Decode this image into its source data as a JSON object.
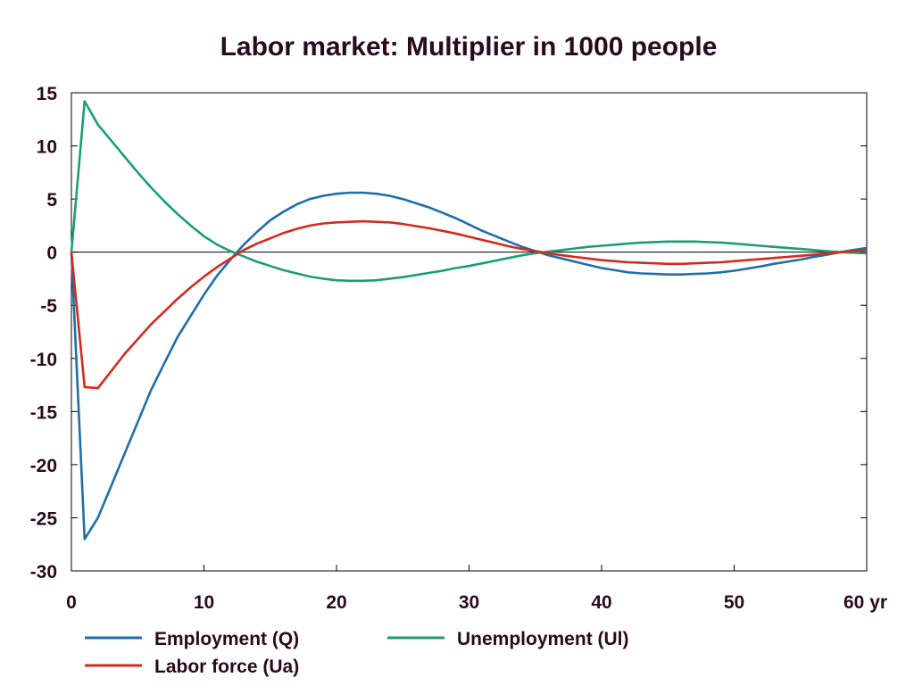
{
  "colors": {
    "employment": "#1f6fa8",
    "unemployment": "#1a9e78",
    "labor_force": "#d42a1c",
    "text": "#2a0a1e",
    "axis": "#000000"
  },
  "chart_data": {
    "type": "line",
    "title": "Labor market: Multiplier in 1000 people",
    "xlabel": "",
    "ylabel": "",
    "xlim": [
      0,
      60
    ],
    "ylim": [
      -30,
      15
    ],
    "x_ticks": [
      0,
      10,
      20,
      30,
      40,
      50,
      60
    ],
    "x_tick_labels": [
      "0",
      "10",
      "20",
      "30",
      "40",
      "50",
      "60 yr"
    ],
    "y_ticks": [
      15,
      10,
      5,
      0,
      -5,
      -10,
      -15,
      -20,
      -25,
      -30
    ],
    "y_tick_labels": [
      "15",
      "10",
      "5",
      "0",
      "-5",
      "-10",
      "-15",
      "-20",
      "-25",
      "-30"
    ],
    "zero_line": true,
    "legend_position": "bottom",
    "series": [
      {
        "name": "Employment (Q)",
        "color_key": "employment",
        "x": [
          0,
          1,
          2,
          3,
          4,
          5,
          6,
          7,
          8,
          9,
          10,
          11,
          12,
          13,
          14,
          15,
          16,
          17,
          18,
          19,
          20,
          21,
          22,
          23,
          24,
          25,
          26,
          27,
          28,
          29,
          30,
          31,
          32,
          33,
          34,
          35,
          36,
          37,
          38,
          39,
          40,
          41,
          42,
          43,
          44,
          45,
          46,
          47,
          48,
          49,
          50,
          51,
          52,
          53,
          54,
          55,
          56,
          57,
          58,
          59,
          60
        ],
        "y": [
          0,
          -27,
          -25,
          -22,
          -19,
          -16,
          -13,
          -10.5,
          -8,
          -6,
          -4,
          -2.2,
          -0.7,
          0.7,
          1.9,
          3,
          3.8,
          4.5,
          5,
          5.3,
          5.5,
          5.6,
          5.6,
          5.5,
          5.3,
          5,
          4.6,
          4.2,
          3.7,
          3.2,
          2.6,
          2,
          1.5,
          1,
          0.5,
          0.1,
          -0.3,
          -0.6,
          -0.9,
          -1.2,
          -1.5,
          -1.7,
          -1.9,
          -2,
          -2.05,
          -2.1,
          -2.1,
          -2.05,
          -2,
          -1.9,
          -1.75,
          -1.55,
          -1.35,
          -1.1,
          -0.9,
          -0.7,
          -0.45,
          -0.25,
          0,
          0.2,
          0.4
        ]
      },
      {
        "name": "Unemployment (Ul)",
        "color_key": "unemployment",
        "x": [
          0,
          1,
          2,
          3,
          4,
          5,
          6,
          7,
          8,
          9,
          10,
          11,
          12,
          13,
          14,
          15,
          16,
          17,
          18,
          19,
          20,
          21,
          22,
          23,
          24,
          25,
          26,
          27,
          28,
          29,
          30,
          31,
          32,
          33,
          34,
          35,
          36,
          37,
          38,
          39,
          40,
          41,
          42,
          43,
          44,
          45,
          46,
          47,
          48,
          49,
          50,
          51,
          52,
          53,
          54,
          55,
          56,
          57,
          58,
          59,
          60
        ],
        "y": [
          0,
          14.2,
          12,
          10.5,
          9,
          7.5,
          6.1,
          4.8,
          3.6,
          2.5,
          1.5,
          0.7,
          0.1,
          -0.4,
          -0.9,
          -1.3,
          -1.7,
          -2,
          -2.3,
          -2.5,
          -2.65,
          -2.7,
          -2.7,
          -2.65,
          -2.5,
          -2.35,
          -2.15,
          -1.95,
          -1.75,
          -1.5,
          -1.3,
          -1.05,
          -0.8,
          -0.55,
          -0.3,
          -0.1,
          0.05,
          0.2,
          0.35,
          0.5,
          0.6,
          0.7,
          0.8,
          0.9,
          0.95,
          1,
          1,
          1,
          0.95,
          0.9,
          0.8,
          0.7,
          0.6,
          0.5,
          0.4,
          0.3,
          0.2,
          0.1,
          0,
          -0.05,
          -0.1
        ]
      },
      {
        "name": "Labor force (Ua)",
        "color_key": "labor_force",
        "x": [
          0,
          1,
          2,
          3,
          4,
          5,
          6,
          7,
          8,
          9,
          10,
          11,
          12,
          13,
          14,
          15,
          16,
          17,
          18,
          19,
          20,
          21,
          22,
          23,
          24,
          25,
          26,
          27,
          28,
          29,
          30,
          31,
          32,
          33,
          34,
          35,
          36,
          37,
          38,
          39,
          40,
          41,
          42,
          43,
          44,
          45,
          46,
          47,
          48,
          49,
          50,
          51,
          52,
          53,
          54,
          55,
          56,
          57,
          58,
          59,
          60
        ],
        "y": [
          0,
          -12.7,
          -12.8,
          -11.2,
          -9.6,
          -8.2,
          -6.8,
          -5.6,
          -4.4,
          -3.3,
          -2.3,
          -1.4,
          -0.6,
          0.2,
          0.8,
          1.3,
          1.8,
          2.2,
          2.5,
          2.7,
          2.8,
          2.85,
          2.9,
          2.85,
          2.8,
          2.65,
          2.45,
          2.25,
          2,
          1.75,
          1.45,
          1.15,
          0.85,
          0.55,
          0.3,
          0.1,
          -0.1,
          -0.3,
          -0.45,
          -0.6,
          -0.75,
          -0.85,
          -0.95,
          -1,
          -1.05,
          -1.1,
          -1.1,
          -1.05,
          -1,
          -0.95,
          -0.85,
          -0.75,
          -0.65,
          -0.55,
          -0.45,
          -0.35,
          -0.25,
          -0.1,
          0,
          0.1,
          0.2
        ]
      }
    ]
  }
}
